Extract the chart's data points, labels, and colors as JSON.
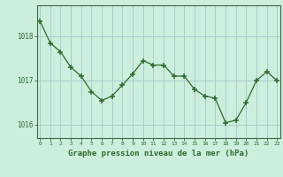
{
  "x": [
    0,
    1,
    2,
    3,
    4,
    5,
    6,
    7,
    8,
    9,
    10,
    11,
    12,
    13,
    14,
    15,
    16,
    17,
    18,
    19,
    20,
    21,
    22,
    23
  ],
  "y": [
    1018.35,
    1017.85,
    1017.65,
    1017.3,
    1017.1,
    1016.75,
    1016.55,
    1016.65,
    1016.9,
    1017.15,
    1017.45,
    1017.35,
    1017.35,
    1017.1,
    1017.1,
    1016.8,
    1016.65,
    1016.6,
    1016.05,
    1016.1,
    1016.5,
    1017.0,
    1017.2,
    1017.0
  ],
  "line_color": "#2d6a2d",
  "marker_color": "#2d6a2d",
  "bg_color": "#cceedd",
  "grid_color": "#aacccc",
  "axis_color": "#446644",
  "tick_color": "#2d6a2d",
  "label_color": "#2d6a2d",
  "xlabel": "Graphe pression niveau de la mer (hPa)",
  "ylim": [
    1015.7,
    1018.7
  ],
  "yticks": [
    1016,
    1017,
    1018
  ],
  "xticks": [
    0,
    1,
    2,
    3,
    4,
    5,
    6,
    7,
    8,
    9,
    10,
    11,
    12,
    13,
    14,
    15,
    16,
    17,
    18,
    19,
    20,
    21,
    22,
    23
  ]
}
